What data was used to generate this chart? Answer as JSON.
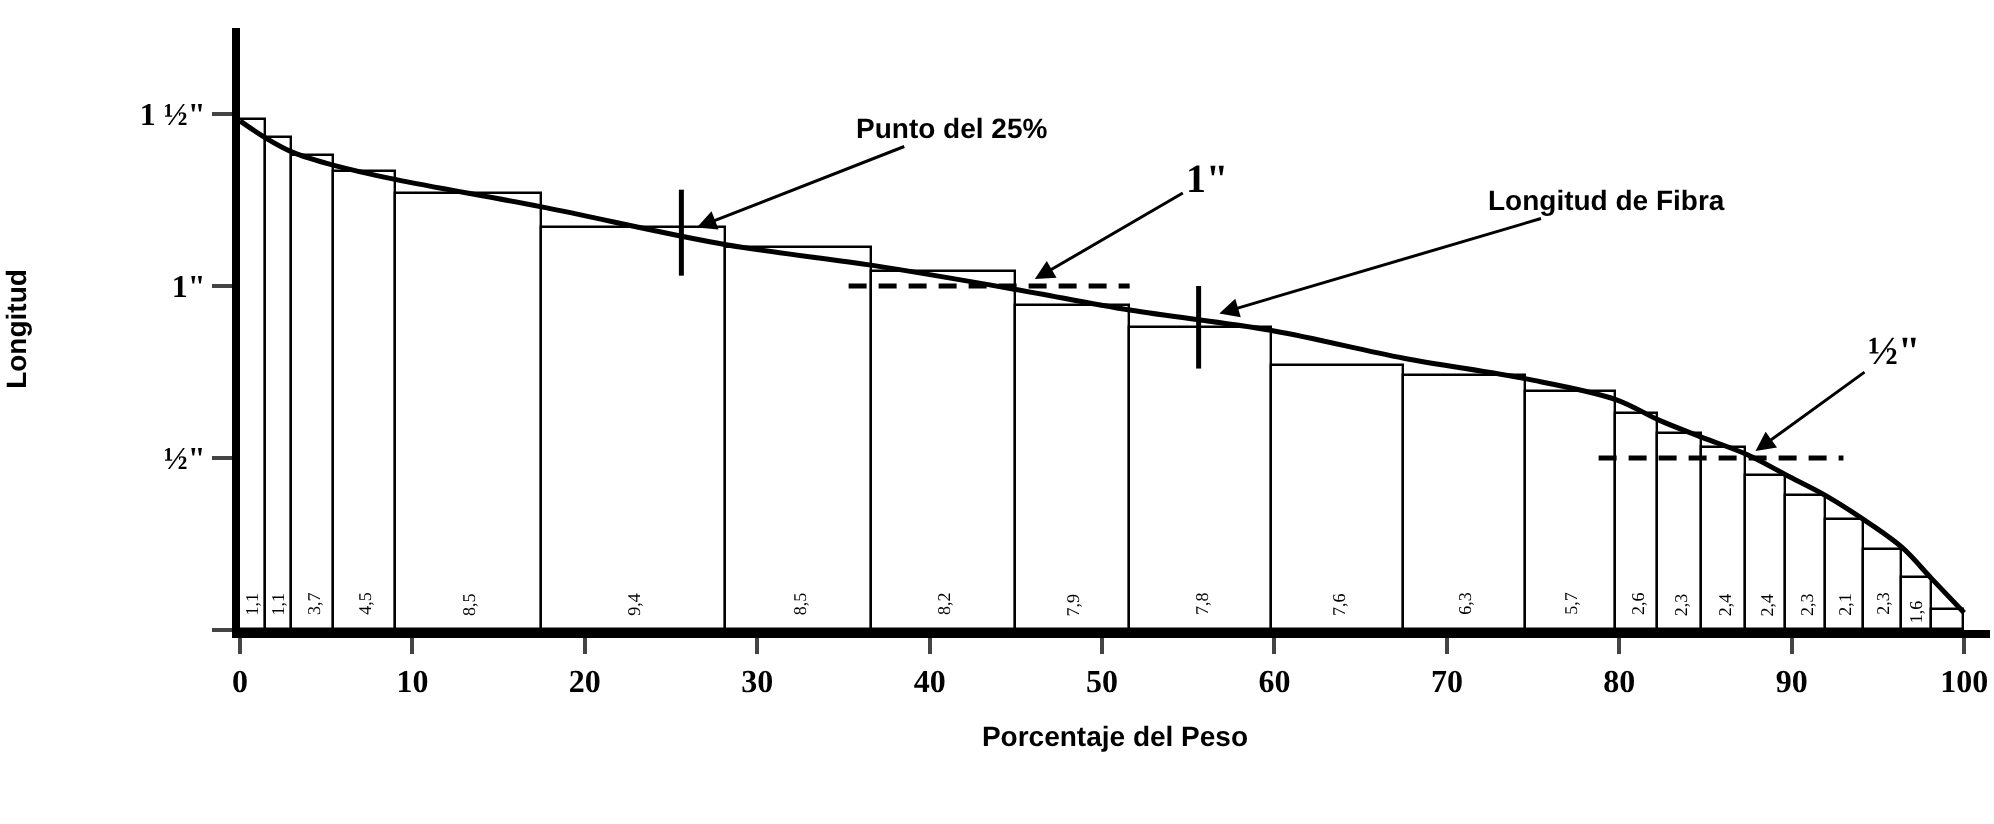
{
  "chart_data": {
    "type": "histogram",
    "xlabel": "Porcentaje del Peso",
    "ylabel": "Longitud",
    "xlim": [
      0,
      101.5
    ],
    "xticks": [
      0,
      10,
      20,
      30,
      40,
      50,
      60,
      70,
      80,
      90,
      100
    ],
    "ylim": [
      0,
      1.75
    ],
    "yticks": [
      {
        "value": 0,
        "label": null
      },
      {
        "value": 0.5,
        "label": "½\""
      },
      {
        "value": 1,
        "label": "1\""
      },
      {
        "value": 1.5,
        "label": "1 ½\""
      }
    ],
    "series": [
      {
        "color": "#ffffff",
        "bins": [
          0,
          1.5,
          3,
          5.5,
          9,
          17.5,
          28.2,
          36.7,
          45,
          51.6,
          59.9,
          67.5,
          74.6,
          79.8,
          82.3,
          84.8,
          87.4,
          89.7,
          92,
          94.2,
          96.4,
          98.1,
          100
        ],
        "values": [
          1.48,
          1.43,
          1.38,
          1.33,
          1.27,
          1.17,
          1.11,
          1.04,
          0.94,
          0.88,
          0.77,
          0.74,
          0.69,
          0.63,
          0.57,
          0.53,
          0.45,
          0.39,
          0.32,
          0.23,
          0.15,
          0.06
        ]
      },
      {
        "type": "line",
        "color": "#000000",
        "x": [
          0,
          1.5,
          3,
          5.5,
          9,
          17.5,
          28.2,
          36.7,
          45,
          51.6,
          59.9,
          67.5,
          74.6,
          79.8,
          82.3,
          84.8,
          87.4,
          89.7,
          92,
          94.2,
          96.4,
          98.1,
          100
        ],
        "values": [
          1.48,
          1.43,
          1.39,
          1.35,
          1.31,
          1.23,
          1.12,
          1.06,
          0.99,
          0.93,
          0.87,
          0.79,
          0.73,
          0.67,
          0.61,
          0.56,
          0.51,
          0.45,
          0.39,
          0.32,
          0.24,
          0.15,
          0.05
        ]
      },
      {
        "type": "line",
        "color": "#000000",
        "x": [
          25.6,
          25.6
        ],
        "values": [
          1.28,
          1.03
        ]
      },
      {
        "type": "line",
        "color": "#000000",
        "x": [
          55.6,
          55.6
        ],
        "values": [
          1.0,
          0.76
        ]
      },
      {
        "type": "line",
        "color": "#000000",
        "line_style": "dashed",
        "x": [
          35.3,
          51.6
        ],
        "values": [
          1.0,
          1.0
        ]
      },
      {
        "type": "line",
        "color": "#000000",
        "line_style": "dashed",
        "x": [
          78.8,
          93
        ],
        "values": [
          0.5,
          0.5
        ]
      }
    ],
    "annotations": [
      {
        "text": "Punto del 25%",
        "x": 26.5,
        "y": 1.17
      },
      {
        "text": "1\"",
        "x": 46.1,
        "y": 1.02
      },
      {
        "text": "Longitud de Fibra",
        "x": 56.8,
        "y": 0.92
      },
      {
        "text": "½\"",
        "x": 87.9,
        "y": 0.52
      },
      {
        "text": "1,1",
        "x": 0.75,
        "y": 0.03
      },
      {
        "text": "1,1",
        "x": 2.25,
        "y": 0.03
      },
      {
        "text": "3,7",
        "x": 4.25,
        "y": 0.03
      },
      {
        "text": "4,5",
        "x": 7.25,
        "y": 0.03
      },
      {
        "text": "8,5",
        "x": 13.25,
        "y": 0.03
      },
      {
        "text": "9,4",
        "x": 22.85,
        "y": 0.03
      },
      {
        "text": "8,5",
        "x": 32.45,
        "y": 0.03
      },
      {
        "text": "8,2",
        "x": 40.85,
        "y": 0.03
      },
      {
        "text": "7,9",
        "x": 48.3,
        "y": 0.03
      },
      {
        "text": "7,8",
        "x": 55.75,
        "y": 0.03
      },
      {
        "text": "7,6",
        "x": 63.7,
        "y": 0.03
      },
      {
        "text": "6,3",
        "x": 71.05,
        "y": 0.03
      },
      {
        "text": "5,7",
        "x": 77.2,
        "y": 0.03
      },
      {
        "text": "2,6",
        "x": 81.05,
        "y": 0.03
      },
      {
        "text": "2,3",
        "x": 83.55,
        "y": 0.03
      },
      {
        "text": "2,4",
        "x": 86.1,
        "y": 0.03
      },
      {
        "text": "2,4",
        "x": 88.55,
        "y": 0.03
      },
      {
        "text": "2,3",
        "x": 90.85,
        "y": 0.03
      },
      {
        "text": "2,1",
        "x": 93.1,
        "y": 0.03
      },
      {
        "text": "2,3",
        "x": 95.3,
        "y": 0.03
      },
      {
        "text": "1,6",
        "x": 97.25,
        "y": 0.01
      }
    ]
  }
}
